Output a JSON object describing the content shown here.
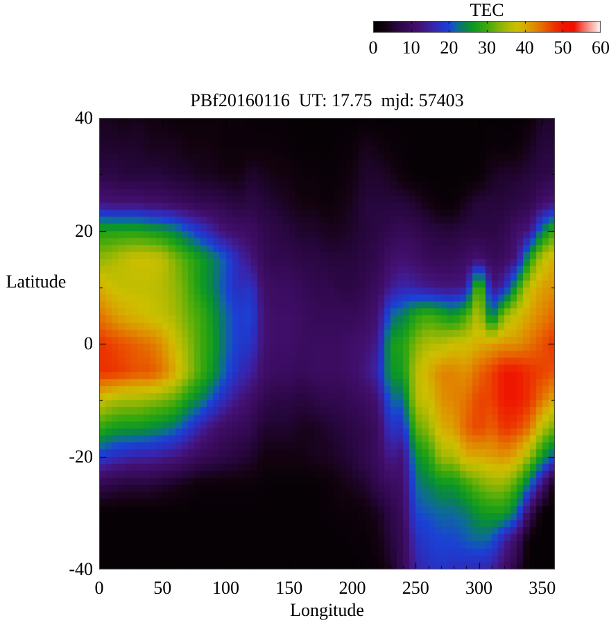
{
  "title": "PBf20160116  UT: 17.75  mjd: 57403",
  "colorbar": {
    "label": "TEC",
    "min": 0,
    "max": 60,
    "ticks": [
      0,
      10,
      20,
      30,
      40,
      50,
      60
    ],
    "minor_tick_step": 10
  },
  "axes": {
    "x": {
      "label": "Longitude",
      "range": [
        0,
        360
      ],
      "tick_labels": [
        0,
        50,
        100,
        150,
        200,
        250,
        300,
        350
      ],
      "major_tick_step": 50,
      "minor_tick_step": 10
    },
    "y": {
      "label": "Latitude",
      "range": [
        -40,
        40
      ],
      "tick_labels": [
        40,
        20,
        0,
        -20,
        -40
      ],
      "major_tick_step": 20,
      "minor_tick_step": 10
    }
  },
  "palette": {
    "stops": [
      [
        0,
        "#000000"
      ],
      [
        3,
        "#12020f"
      ],
      [
        6,
        "#26063c"
      ],
      [
        9,
        "#370a58"
      ],
      [
        12,
        "#421070"
      ],
      [
        14,
        "#401a8e"
      ],
      [
        16,
        "#3626b0"
      ],
      [
        18,
        "#2434c6"
      ],
      [
        20,
        "#1a42d4"
      ],
      [
        22,
        "#0d6a9c"
      ],
      [
        24,
        "#0a8054"
      ],
      [
        26,
        "#0a9628"
      ],
      [
        28,
        "#22a116"
      ],
      [
        30,
        "#40a90c"
      ],
      [
        33,
        "#80b306"
      ],
      [
        36,
        "#b4bb02"
      ],
      [
        38,
        "#cdbf00"
      ],
      [
        40,
        "#d6ac00"
      ],
      [
        42,
        "#de9200"
      ],
      [
        44,
        "#e47400"
      ],
      [
        46,
        "#e95300"
      ],
      [
        48,
        "#ed3000"
      ],
      [
        50,
        "#ef1600"
      ],
      [
        53,
        "#f01000"
      ],
      [
        55,
        "#f25a50"
      ],
      [
        57,
        "#f79b93"
      ],
      [
        59,
        "#fcd7d3"
      ],
      [
        60,
        "#ffffff"
      ]
    ]
  },
  "chart_data": {
    "type": "heatmap",
    "title": "PBf20160116  UT: 17.75  mjd: 57403",
    "xlabel": "Longitude",
    "ylabel": "Latitude",
    "zlabel": "TEC",
    "xlim": [
      0,
      360
    ],
    "ylim": [
      -40,
      40
    ],
    "zlim": [
      0,
      60
    ],
    "lons": [
      0,
      10,
      20,
      30,
      40,
      50,
      60,
      70,
      80,
      90,
      100,
      110,
      120,
      130,
      140,
      150,
      160,
      170,
      180,
      190,
      200,
      210,
      220,
      230,
      240,
      250,
      260,
      270,
      280,
      290,
      300,
      310,
      320,
      330,
      340,
      350,
      360
    ],
    "lats": [
      40,
      35,
      30,
      25,
      20,
      15,
      10,
      5,
      0,
      -5,
      -10,
      -15,
      -20,
      -25,
      -30,
      -35,
      -40
    ],
    "values": [
      [
        4,
        4,
        3,
        4,
        3,
        3,
        2,
        2,
        2,
        2,
        2,
        2,
        1.5,
        1.5,
        1.5,
        1,
        1,
        1,
        1,
        1,
        1,
        1,
        1,
        1,
        1,
        1,
        1,
        1,
        1,
        1,
        1,
        1,
        1,
        1,
        2,
        5,
        5
      ],
      [
        5,
        5,
        5,
        5,
        4,
        4,
        4,
        3,
        3,
        3,
        2,
        2,
        2,
        2,
        2,
        1.5,
        1,
        1,
        1,
        1.5,
        2,
        4,
        3,
        2,
        1.5,
        1,
        1,
        1,
        1,
        1,
        1,
        2,
        1.5,
        2,
        4,
        6,
        6
      ],
      [
        7,
        7,
        6,
        6,
        6,
        6,
        5,
        5,
        4,
        4,
        3,
        3,
        5,
        4,
        3,
        3,
        2,
        2,
        1.5,
        2,
        3,
        5,
        5,
        4,
        2,
        1,
        1,
        1,
        1,
        1,
        1.5,
        4,
        5,
        5,
        6,
        7,
        8
      ],
      [
        13,
        12,
        12,
        12,
        11,
        11,
        10,
        9,
        8,
        8,
        7,
        6,
        7,
        6,
        5,
        4,
        3,
        3,
        2,
        3,
        4,
        6,
        6,
        6,
        6,
        5,
        3,
        1.5,
        1.5,
        4,
        6,
        6,
        6,
        7,
        8,
        11,
        13
      ],
      [
        28,
        28,
        28,
        28,
        27,
        26,
        24,
        21,
        18,
        15,
        12,
        11,
        10,
        8,
        7,
        6,
        5,
        5,
        4,
        4,
        5,
        6,
        7,
        8,
        9,
        8,
        7,
        6,
        6,
        7,
        7,
        7,
        8,
        11,
        13,
        24,
        30
      ],
      [
        34,
        35,
        37,
        38,
        38,
        37,
        33,
        30,
        27,
        24,
        21,
        16,
        13,
        9,
        8,
        8,
        7,
        7,
        6,
        6,
        6,
        7,
        8,
        11,
        12,
        11,
        9,
        9,
        9,
        10,
        12,
        9,
        10,
        13,
        28,
        37,
        40
      ],
      [
        40,
        38,
        37,
        37,
        37,
        36,
        34,
        31,
        27,
        24,
        20,
        17,
        18,
        11,
        10,
        10,
        9,
        8,
        8,
        7,
        7,
        8,
        10,
        14,
        16,
        15,
        14,
        13,
        13,
        14,
        34,
        13,
        16,
        28,
        38,
        41,
        42
      ],
      [
        44,
        42,
        40,
        39,
        38,
        37,
        35,
        32,
        30,
        26,
        22,
        19,
        20,
        12,
        11,
        11,
        10,
        9,
        9,
        9,
        9,
        10,
        12,
        22,
        24,
        28,
        30,
        28,
        26,
        30,
        37,
        22,
        34,
        38,
        41,
        43,
        45
      ],
      [
        48,
        47,
        46,
        45,
        44,
        42,
        38,
        34,
        30,
        27,
        22,
        19,
        18,
        12,
        11,
        11,
        10,
        10,
        10,
        10,
        11,
        12,
        14,
        27,
        28,
        33,
        36,
        36,
        38,
        38,
        40,
        41,
        42,
        42,
        44,
        46,
        48
      ],
      [
        48,
        48,
        47,
        46,
        46,
        44,
        40,
        35,
        30,
        26,
        21,
        17,
        15,
        11,
        10,
        10,
        9,
        10,
        10,
        10,
        11,
        13,
        16,
        26,
        27,
        36,
        40,
        43,
        43,
        42,
        45,
        47,
        50,
        50,
        48,
        47,
        46
      ],
      [
        38,
        36,
        35,
        35,
        34,
        33,
        31,
        27,
        24,
        20,
        16,
        13,
        11,
        8,
        7,
        7,
        6,
        7,
        8,
        8,
        9,
        10,
        12,
        22,
        22,
        36,
        38,
        42,
        43,
        44,
        47,
        47,
        50,
        50,
        48,
        44,
        40
      ],
      [
        29,
        27,
        26,
        26,
        25,
        24,
        22,
        19,
        15,
        12,
        10,
        9,
        8,
        5,
        5,
        5,
        4,
        4,
        5,
        6,
        7,
        8,
        10,
        18,
        17,
        31,
        34,
        40,
        41,
        45,
        47,
        45,
        48,
        47,
        44,
        36,
        32
      ],
      [
        19,
        17,
        16,
        15,
        15,
        14,
        13,
        11,
        9,
        8,
        7,
        6,
        5,
        3,
        3,
        3,
        3,
        4,
        4,
        5,
        6,
        8,
        10,
        14,
        12,
        25,
        28,
        35,
        35,
        40,
        40,
        41,
        42,
        40,
        34,
        26,
        20
      ],
      [
        8,
        7,
        6,
        6,
        6,
        5,
        4,
        3,
        2,
        2,
        2,
        2,
        2,
        1.5,
        1,
        1,
        1,
        1,
        2,
        3,
        4,
        5,
        8,
        10,
        11,
        22,
        24,
        26,
        26,
        29,
        32,
        34,
        34,
        30,
        22,
        12,
        2
      ],
      [
        1,
        1,
        1,
        1,
        1,
        1,
        1,
        1,
        1,
        1,
        1,
        1,
        1,
        1,
        1,
        1,
        1,
        1,
        1.5,
        2,
        2,
        2.5,
        4,
        7,
        10,
        20,
        21,
        22,
        22,
        23,
        26,
        27,
        27,
        22,
        9,
        1,
        1
      ],
      [
        1,
        1,
        1,
        1,
        1,
        1,
        1,
        1,
        1,
        1,
        1,
        1,
        1,
        1,
        1,
        1,
        1,
        1,
        1,
        1,
        1.5,
        1.5,
        3,
        6,
        9,
        17,
        19,
        20,
        20,
        21,
        22,
        21,
        15,
        10,
        1,
        1,
        1
      ],
      [
        1,
        1,
        1,
        1,
        1,
        1,
        1,
        1,
        1,
        1,
        1,
        1,
        1,
        1,
        1,
        1,
        1,
        1,
        1,
        1,
        1,
        1,
        2,
        4,
        9,
        15,
        17,
        18,
        17,
        17,
        16,
        15,
        11,
        6,
        1,
        1,
        1
      ]
    ]
  },
  "layout_colors": {
    "border": "#444444",
    "tick": "#000000",
    "text": "#000000",
    "background": "#ffffff"
  }
}
